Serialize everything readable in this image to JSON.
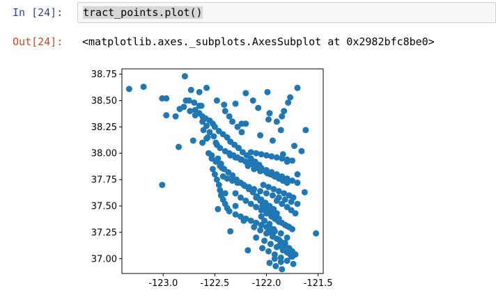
{
  "input_cell": {
    "prompt": "In [24]:",
    "code": "tract_points.plot()"
  },
  "output_cell": {
    "prompt": "Out[24]:",
    "text": "<matplotlib.axes._subplots.AxesSubplot at 0x2982bfc8be0>"
  },
  "colors": {
    "in_prompt": "#303f9f",
    "out_prompt": "#d84315",
    "marker": "#1f77b4"
  },
  "chart_data": {
    "type": "scatter",
    "title": "",
    "xlabel": "",
    "ylabel": "",
    "xlim": [
      -123.4,
      -121.45
    ],
    "ylim": [
      36.86,
      38.8
    ],
    "xticks": [
      -123.0,
      -122.5,
      -122.0,
      -121.5
    ],
    "xtick_labels": [
      "-123.0",
      "-122.5",
      "-122.0",
      "-121.5"
    ],
    "yticks": [
      37.0,
      37.25,
      37.5,
      37.75,
      38.0,
      38.25,
      38.5,
      38.75
    ],
    "ytick_labels": [
      "37.00",
      "37.25",
      "37.50",
      "37.75",
      "38.00",
      "38.25",
      "38.50",
      "38.75"
    ],
    "grid": false,
    "legend": "none",
    "x": [
      -123.33,
      -123.19,
      -123.01,
      -122.97,
      -122.85,
      -122.79,
      -122.73,
      -122.65,
      -122.58,
      -122.48,
      -122.4,
      -122.3,
      -122.2,
      -122.08,
      -121.98,
      -121.9,
      -121.85,
      -121.83,
      -121.79,
      -121.77,
      -121.7,
      -121.62,
      -121.52,
      -121.63,
      -121.99,
      -122.88,
      -123.01,
      -122.41,
      -122.51,
      -122.71,
      -122.69,
      -122.65,
      -122.62,
      -122.59,
      -122.55,
      -122.52,
      -122.5,
      -122.46,
      -122.42,
      -122.38,
      -122.35,
      -122.31,
      -122.27,
      -122.23,
      -122.19,
      -122.15,
      -122.11,
      -122.07,
      -122.53,
      -122.49,
      -122.45,
      -122.41,
      -122.37,
      -122.33,
      -122.29,
      -122.25,
      -122.21,
      -122.17,
      -122.13,
      -122.09,
      -122.05,
      -122.01,
      -121.97,
      -121.93,
      -122.52,
      -122.5,
      -122.48,
      -122.46,
      -122.45,
      -122.44,
      -122.42,
      -122.4,
      -122.38,
      -122.36,
      -122.3,
      -122.25,
      -122.2,
      -122.15,
      -122.1,
      -122.05,
      -122.0,
      -121.95,
      -121.92,
      -122.3,
      -122.25,
      -122.2,
      -122.15,
      -122.1,
      -122.05,
      -122.0,
      -121.95,
      -121.9,
      -121.85,
      -121.8,
      -121.75,
      -122.12,
      -122.06,
      -122.0,
      -121.94,
      -121.88,
      -121.82,
      -122.1,
      -122.02,
      -121.96,
      -121.9,
      -121.84,
      -121.78,
      -122.04,
      -121.98,
      -121.92,
      -121.86,
      -121.8,
      -121.74,
      -121.97,
      -121.91,
      -121.85,
      -122.35,
      -122.3,
      -122.25,
      -122.2,
      -122.15,
      -122.1,
      -122.05,
      -122.0,
      -121.95,
      -121.9,
      -121.85,
      -121.8,
      -121.75,
      -121.7,
      -122.42,
      -122.38,
      -122.33,
      -122.28,
      -122.22,
      -122.17,
      -122.12,
      -122.06,
      -122.0,
      -121.94,
      -121.88,
      -121.82,
      -121.76,
      -121.7,
      -122.4,
      -122.36,
      -122.32,
      -122.28,
      -122.24,
      -122.2,
      -122.16,
      -122.12,
      -122.08,
      -122.04,
      -122.0,
      -121.96,
      -121.92,
      -121.88,
      -121.84,
      -121.8,
      -122.15,
      -122.1,
      -122.05,
      -122.0,
      -121.95,
      -121.9,
      -121.85,
      -121.8,
      -121.75,
      -122.18,
      -122.12,
      -122.06,
      -121.99,
      -121.93,
      -122.65,
      -122.7,
      -122.75,
      -122.8,
      -122.58,
      -122.62,
      -122.55,
      -122.49,
      -122.45,
      -122.47,
      -122.44,
      -122.53,
      -122.57,
      -122.36,
      -122.33,
      -122.28,
      -122.24,
      -122.2,
      -122.0,
      -121.96,
      -121.92,
      -121.88,
      -121.82,
      -121.78,
      -122.05,
      -122.02,
      -121.97,
      -121.93,
      -121.86,
      -121.8,
      -121.98,
      -121.94,
      -121.9,
      -121.86,
      -121.82,
      -121.78,
      -121.75,
      -121.72,
      -121.88,
      -121.84,
      -121.8,
      -121.76,
      -121.92,
      -121.86,
      -122.1,
      -122.06,
      -122.02,
      -121.98,
      -121.94,
      -121.9,
      -122.04,
      -122.0,
      -121.96,
      -121.92,
      -121.88,
      -122.03,
      -121.98,
      -121.93,
      -121.88,
      -121.83,
      -121.78,
      -121.74,
      -121.9,
      -121.85,
      -121.8,
      -121.76,
      -121.72,
      -122.97,
      -122.78,
      -122.84,
      -122.74,
      -122.69,
      -122.63,
      -122.61,
      -122.58,
      -122.56,
      -122.48,
      -122.43,
      -122.24,
      -122.13,
      -122.06,
      -121.97,
      -121.94,
      -121.86,
      -121.84,
      -121.8,
      -121.73,
      -121.66,
      -122.3,
      -122.22,
      -122.18,
      -121.75,
      -122.4,
      -122.35,
      -122.47,
      -121.7,
      -122.62
    ],
    "y": [
      38.61,
      38.63,
      38.52,
      38.36,
      38.06,
      38.73,
      38.6,
      38.58,
      38.62,
      38.5,
      38.4,
      38.47,
      38.57,
      38.43,
      38.32,
      38.3,
      38.35,
      38.4,
      38.48,
      38.53,
      38.62,
      38.22,
      37.24,
      37.63,
      38.58,
      38.35,
      37.7,
      38.46,
      38.16,
      38.12,
      38.41,
      38.38,
      38.35,
      38.33,
      38.31,
      38.28,
      38.25,
      38.21,
      38.18,
      38.15,
      38.11,
      38.08,
      38.05,
      38.01,
      37.98,
      37.95,
      37.92,
      37.89,
      37.95,
      37.92,
      37.88,
      37.85,
      37.82,
      37.79,
      37.75,
      37.72,
      37.69,
      37.66,
      37.63,
      37.59,
      37.56,
      37.53,
      37.5,
      37.47,
      37.85,
      37.8,
      37.75,
      37.7,
      37.65,
      37.6,
      37.56,
      37.52,
      37.48,
      37.45,
      37.42,
      37.4,
      37.38,
      37.36,
      37.34,
      37.32,
      37.3,
      37.28,
      37.26,
      37.62,
      37.58,
      37.55,
      37.52,
      37.49,
      37.46,
      37.43,
      37.4,
      37.37,
      37.34,
      37.31,
      37.28,
      37.3,
      37.27,
      37.24,
      37.21,
      37.18,
      37.15,
      37.2,
      37.17,
      37.14,
      37.11,
      37.08,
      37.05,
      37.1,
      37.07,
      37.04,
      37.01,
      36.98,
      36.95,
      36.96,
      36.93,
      36.9,
      37.98,
      37.96,
      37.94,
      37.92,
      37.9,
      37.88,
      37.86,
      37.84,
      37.82,
      37.8,
      37.78,
      37.76,
      37.74,
      37.72,
      37.78,
      37.76,
      37.74,
      37.72,
      37.7,
      37.68,
      37.66,
      37.64,
      37.62,
      37.6,
      37.58,
      37.56,
      37.54,
      37.52,
      38.02,
      38.0,
      37.98,
      37.96,
      37.94,
      37.92,
      37.9,
      37.88,
      37.86,
      37.84,
      37.82,
      37.8,
      37.78,
      37.76,
      37.74,
      37.72,
      38.01,
      38.0,
      37.99,
      37.98,
      37.97,
      37.96,
      37.95,
      37.94,
      37.93,
      37.88,
      37.85,
      37.83,
      37.81,
      37.79,
      38.45,
      38.48,
      38.5,
      38.44,
      38.26,
      38.3,
      38.2,
      38.1,
      38.05,
      37.95,
      37.9,
      37.98,
      38.15,
      38.35,
      38.3,
      38.25,
      38.2,
      38.28,
      37.45,
      37.42,
      37.38,
      37.35,
      37.32,
      37.3,
      37.4,
      37.36,
      37.33,
      37.28,
      37.24,
      37.2,
      37.25,
      37.22,
      37.19,
      37.16,
      37.13,
      37.1,
      37.07,
      37.04,
      37.12,
      37.09,
      37.06,
      37.02,
      37.0,
      36.97,
      37.58,
      37.55,
      37.52,
      37.49,
      37.46,
      37.43,
      37.5,
      37.47,
      37.44,
      37.41,
      37.38,
      37.7,
      37.68,
      37.66,
      37.64,
      37.62,
      37.6,
      37.58,
      37.55,
      37.52,
      37.49,
      37.46,
      37.43,
      38.52,
      38.5,
      38.42,
      38.4,
      38.36,
      38.45,
      38.22,
      38.14,
      38.0,
      38.08,
      37.86,
      38.28,
      38.5,
      38.17,
      38.38,
      38.12,
      38.22,
      37.99,
      37.92,
      38.07,
      38.02,
      37.5,
      37.36,
      37.08,
      37.02,
      37.62,
      37.26,
      37.47,
      37.8,
      38.1
    ]
  }
}
